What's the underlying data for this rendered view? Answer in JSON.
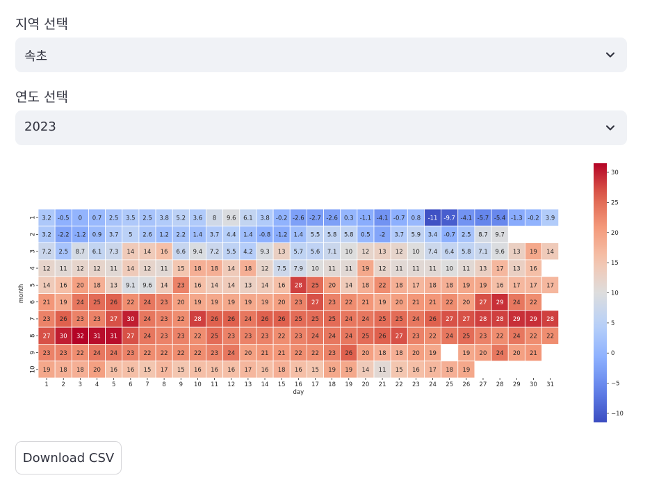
{
  "region_select": {
    "label": "지역 선택",
    "value": "속초"
  },
  "year_select": {
    "label": "연도 선택",
    "value": "2023"
  },
  "download_label": "Download CSV",
  "icons": {
    "chevron": "chevron-down-icon"
  },
  "chart_data": {
    "type": "heatmap",
    "xlabel": "day",
    "ylabel": "month",
    "x": [
      1,
      2,
      3,
      4,
      5,
      6,
      7,
      8,
      9,
      10,
      11,
      12,
      13,
      14,
      15,
      16,
      17,
      18,
      19,
      20,
      21,
      22,
      23,
      24,
      25,
      26,
      27,
      28,
      29,
      30,
      31
    ],
    "y": [
      1,
      2,
      3,
      4,
      5,
      6,
      7,
      8,
      9,
      10
    ],
    "colormap": "coolwarm",
    "vmin": -11.5,
    "vmax": 31.5,
    "colorbar_ticks": [
      -10,
      -5,
      0,
      5,
      10,
      15,
      20,
      25,
      30
    ],
    "values": [
      [
        3.2,
        -0.5,
        0,
        0.7,
        2.5,
        3.5,
        2.5,
        3.8,
        5.2,
        3.6,
        8,
        9.6,
        6.1,
        3.8,
        -0.2,
        -2.6,
        -2.7,
        -2.6,
        0.3,
        -1.1,
        -4.1,
        -0.7,
        0.8,
        -11,
        -9.7,
        -4.1,
        -5.7,
        -5.4,
        -1.3,
        -0.2,
        3.9
      ],
      [
        3.2,
        -2.2,
        -1.2,
        0.9,
        3.7,
        5,
        2.6,
        1.2,
        2.2,
        1.4,
        3.7,
        4.4,
        1.4,
        -0.8,
        -1.2,
        1.4,
        5.5,
        5.8,
        5.8,
        0.5,
        -2,
        3.7,
        5.9,
        3.4,
        -0.7,
        2.5,
        8.7,
        9.7,
        null,
        null,
        null
      ],
      [
        7.2,
        2.5,
        8.7,
        6.1,
        7.3,
        14,
        14,
        16,
        6.6,
        9.4,
        7.2,
        5.5,
        4.2,
        9.3,
        13,
        5.7,
        5.6,
        7.1,
        10,
        12,
        13,
        12,
        10,
        7.4,
        6.4,
        5.8,
        7.1,
        9.6,
        13,
        19,
        14
      ],
      [
        12,
        11,
        12,
        12,
        11,
        14,
        12,
        11,
        15,
        18,
        18,
        14,
        18,
        12,
        7.5,
        7.9,
        10,
        11,
        11,
        19,
        12,
        11,
        11,
        11,
        10,
        11,
        13,
        17,
        13,
        16,
        null
      ],
      [
        14,
        16,
        20,
        18,
        13,
        9.1,
        9.6,
        14,
        23,
        16,
        14,
        14,
        13,
        14,
        16,
        28,
        25,
        20,
        14,
        18,
        22,
        18,
        17,
        18,
        18,
        19,
        19,
        16,
        17,
        17,
        17
      ],
      [
        21,
        19,
        24,
        25,
        26,
        22,
        24,
        23,
        20,
        19,
        19,
        19,
        19,
        19,
        20,
        23,
        27,
        23,
        22,
        21,
        19,
        20,
        21,
        21,
        22,
        20,
        27,
        29,
        24,
        22,
        null
      ],
      [
        23,
        26,
        23,
        23,
        27,
        30,
        24,
        23,
        22,
        28,
        26,
        26,
        24,
        26,
        26,
        25,
        25,
        25,
        24,
        24,
        25,
        25,
        24,
        26,
        27,
        27,
        28,
        28,
        29,
        29,
        28
      ],
      [
        27,
        30,
        32,
        31,
        31,
        27,
        24,
        23,
        23,
        22,
        25,
        23,
        23,
        23,
        22,
        23,
        24,
        24,
        24,
        25,
        26,
        27,
        23,
        22,
        24,
        25,
        23,
        22,
        24,
        22,
        22
      ],
      [
        23,
        23,
        22,
        24,
        24,
        23,
        22,
        22,
        22,
        22,
        23,
        24,
        20,
        21,
        21,
        22,
        22,
        23,
        26,
        20,
        18,
        18,
        20,
        19,
        null,
        19,
        20,
        24,
        20,
        21,
        null
      ],
      [
        19,
        18,
        18,
        20,
        16,
        16,
        15,
        17,
        15,
        16,
        16,
        16,
        17,
        16,
        18,
        16,
        15,
        19,
        19,
        14,
        11,
        15,
        16,
        17,
        18,
        19,
        null,
        null,
        null,
        null,
        null
      ]
    ]
  }
}
